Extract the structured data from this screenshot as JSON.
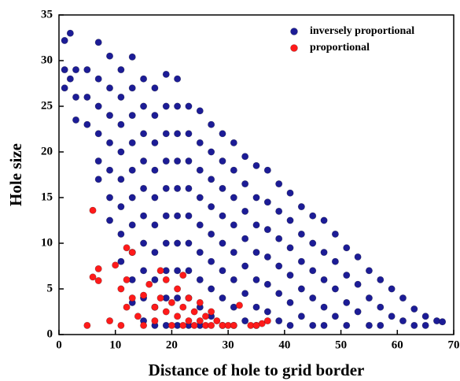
{
  "chart_data": {
    "type": "scatter",
    "xlabel": "Distance of hole to grid border",
    "ylabel": "Hole size",
    "xlim": [
      0,
      70
    ],
    "xticks": [
      0,
      10,
      20,
      30,
      40,
      50,
      60,
      70
    ],
    "ylim": [
      0,
      35
    ],
    "yticks": [
      0,
      5,
      10,
      15,
      20,
      25,
      30,
      35
    ],
    "legend": "upper right",
    "series": [
      {
        "name": "inversely proportional",
        "color": "#1c1c96",
        "x": [
          1,
          1,
          1,
          2,
          2,
          3,
          3,
          3,
          5,
          5,
          5,
          7,
          7,
          7,
          7,
          7,
          7,
          9,
          9,
          9,
          9,
          9,
          9,
          9,
          11,
          11,
          11,
          11,
          11,
          11,
          11,
          11,
          13,
          13,
          13,
          13,
          13,
          13,
          13,
          13,
          13,
          13,
          15,
          15,
          15,
          15,
          15,
          15,
          15,
          15,
          15,
          15,
          17,
          17,
          17,
          17,
          17,
          17,
          17,
          17,
          17,
          17,
          19,
          19,
          19,
          19,
          19,
          19,
          19,
          19,
          19,
          19,
          21,
          21,
          21,
          21,
          21,
          21,
          21,
          21,
          21,
          21,
          23,
          23,
          23,
          23,
          23,
          23,
          23,
          23,
          23,
          25,
          25,
          25,
          25,
          25,
          25,
          25,
          25,
          25,
          27,
          27,
          27,
          27,
          27,
          27,
          27,
          27,
          29,
          29,
          29,
          29,
          29,
          29,
          29,
          29,
          31,
          31,
          31,
          31,
          31,
          31,
          31,
          31,
          33,
          33,
          33,
          33,
          33,
          33,
          33,
          35,
          35,
          35,
          35,
          35,
          35,
          35,
          37,
          37,
          37,
          37,
          37,
          37,
          39,
          39,
          39,
          39,
          39,
          39,
          41,
          41,
          41,
          41,
          41,
          41,
          43,
          43,
          43,
          43,
          43,
          45,
          45,
          45,
          45,
          45,
          47,
          47,
          47,
          47,
          47,
          49,
          49,
          49,
          49,
          51,
          51,
          51,
          51,
          53,
          53,
          53,
          55,
          55,
          55,
          57,
          57,
          57,
          59,
          59,
          61,
          61,
          63,
          63,
          65,
          65,
          67,
          68
        ],
        "values": [
          32.2,
          29,
          27,
          33,
          28,
          29,
          26,
          23.5,
          29,
          26,
          23,
          32,
          28,
          25,
          22,
          19,
          17,
          30.5,
          27,
          24,
          21,
          18,
          15,
          12.5,
          29,
          26,
          23,
          20,
          17,
          14,
          11,
          8,
          30.4,
          27,
          24,
          21,
          18,
          15,
          12,
          9,
          6,
          3.5,
          28,
          25,
          22,
          19,
          16,
          13,
          10,
          7,
          4,
          1.5,
          27,
          24,
          21,
          18,
          15,
          12,
          9,
          6,
          3,
          1,
          28.5,
          25,
          22,
          19,
          16,
          13,
          10,
          7,
          4,
          1,
          28,
          25,
          22,
          19,
          16,
          13,
          10,
          7,
          4,
          1,
          25,
          22,
          19,
          16,
          13,
          10,
          7,
          4,
          1,
          24.5,
          21,
          18,
          15,
          12,
          9,
          6,
          3,
          1,
          23,
          20,
          17,
          14,
          11,
          8,
          5,
          2,
          22,
          19,
          16,
          13,
          10,
          7,
          4,
          1,
          21,
          18,
          15,
          12,
          9,
          6,
          3,
          1,
          19.5,
          16.5,
          13.5,
          10.5,
          7.5,
          4.5,
          1.5,
          18.5,
          15,
          12,
          9,
          6,
          3,
          1,
          18,
          14.5,
          11.5,
          8.5,
          5.5,
          2.5,
          16.5,
          13.5,
          10.5,
          7.5,
          4.5,
          1.5,
          15.5,
          12.5,
          9.5,
          6.5,
          3.5,
          1,
          14,
          11,
          8,
          5,
          2,
          13,
          10,
          7,
          4,
          1,
          12.5,
          9,
          6,
          3,
          1,
          11,
          8,
          5,
          2,
          9.5,
          6.5,
          3.5,
          1,
          8.5,
          5.5,
          2.5,
          7,
          4,
          1,
          6,
          3,
          1,
          5,
          2,
          4,
          1.5,
          2.8,
          1,
          2,
          1,
          1.5,
          1.4
        ]
      },
      {
        "name": "proportional",
        "color": "#ff1a1a",
        "x": [
          6,
          7,
          6,
          7,
          10,
          9,
          5,
          12,
          13,
          12,
          11,
          13,
          12,
          11,
          14,
          15,
          15,
          16,
          17,
          18,
          18,
          17,
          19,
          19,
          20,
          20,
          21,
          21,
          22,
          22,
          22,
          23,
          23,
          24,
          24,
          25,
          25,
          26,
          26,
          27,
          27,
          28,
          29,
          30,
          31,
          32,
          34,
          36,
          37,
          35
        ],
        "values": [
          13.6,
          7.2,
          6.3,
          5.9,
          7.6,
          1.5,
          1,
          9.5,
          9,
          6,
          5,
          4,
          3,
          1,
          2,
          4.3,
          1,
          5.5,
          3,
          7,
          4,
          1.5,
          6,
          2.5,
          3.5,
          1,
          5,
          2,
          6.5,
          3,
          1,
          4,
          1.5,
          2.5,
          1,
          3.5,
          1.5,
          2,
          1,
          2.5,
          1,
          1.5,
          1,
          1,
          1,
          3.2,
          1,
          1.2,
          1.5,
          1
        ]
      }
    ]
  }
}
